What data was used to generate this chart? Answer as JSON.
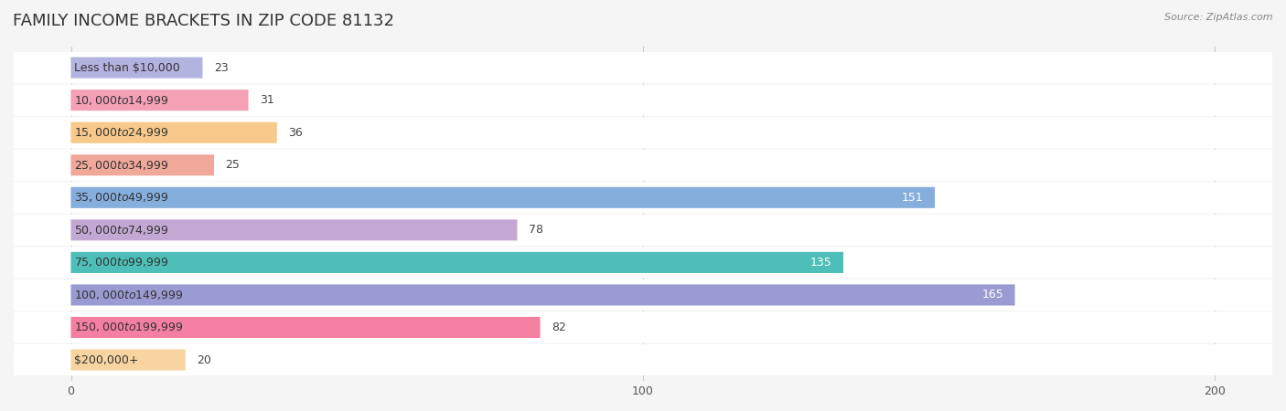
{
  "title": "FAMILY INCOME BRACKETS IN ZIP CODE 81132",
  "source": "Source: ZipAtlas.com",
  "categories": [
    "Less than $10,000",
    "$10,000 to $14,999",
    "$15,000 to $24,999",
    "$25,000 to $34,999",
    "$35,000 to $49,999",
    "$50,000 to $74,999",
    "$75,000 to $99,999",
    "$100,000 to $149,999",
    "$150,000 to $199,999",
    "$200,000+"
  ],
  "values": [
    23,
    31,
    36,
    25,
    151,
    78,
    135,
    165,
    82,
    20
  ],
  "bar_colors": [
    "#b3b3e0",
    "#f4a0b5",
    "#f7c98a",
    "#f0a89a",
    "#85aedd",
    "#c4a8d4",
    "#4dbfb8",
    "#9b9bd4",
    "#f47fa0",
    "#f7d4a0"
  ],
  "xlim": [
    -10,
    210
  ],
  "xticks": [
    0,
    100,
    200
  ],
  "background_color": "#f5f5f5",
  "bar_background_color": "#ffffff",
  "title_fontsize": 13,
  "label_fontsize": 9,
  "value_fontsize": 9,
  "bar_height": 0.62,
  "label_inside_bar": true
}
